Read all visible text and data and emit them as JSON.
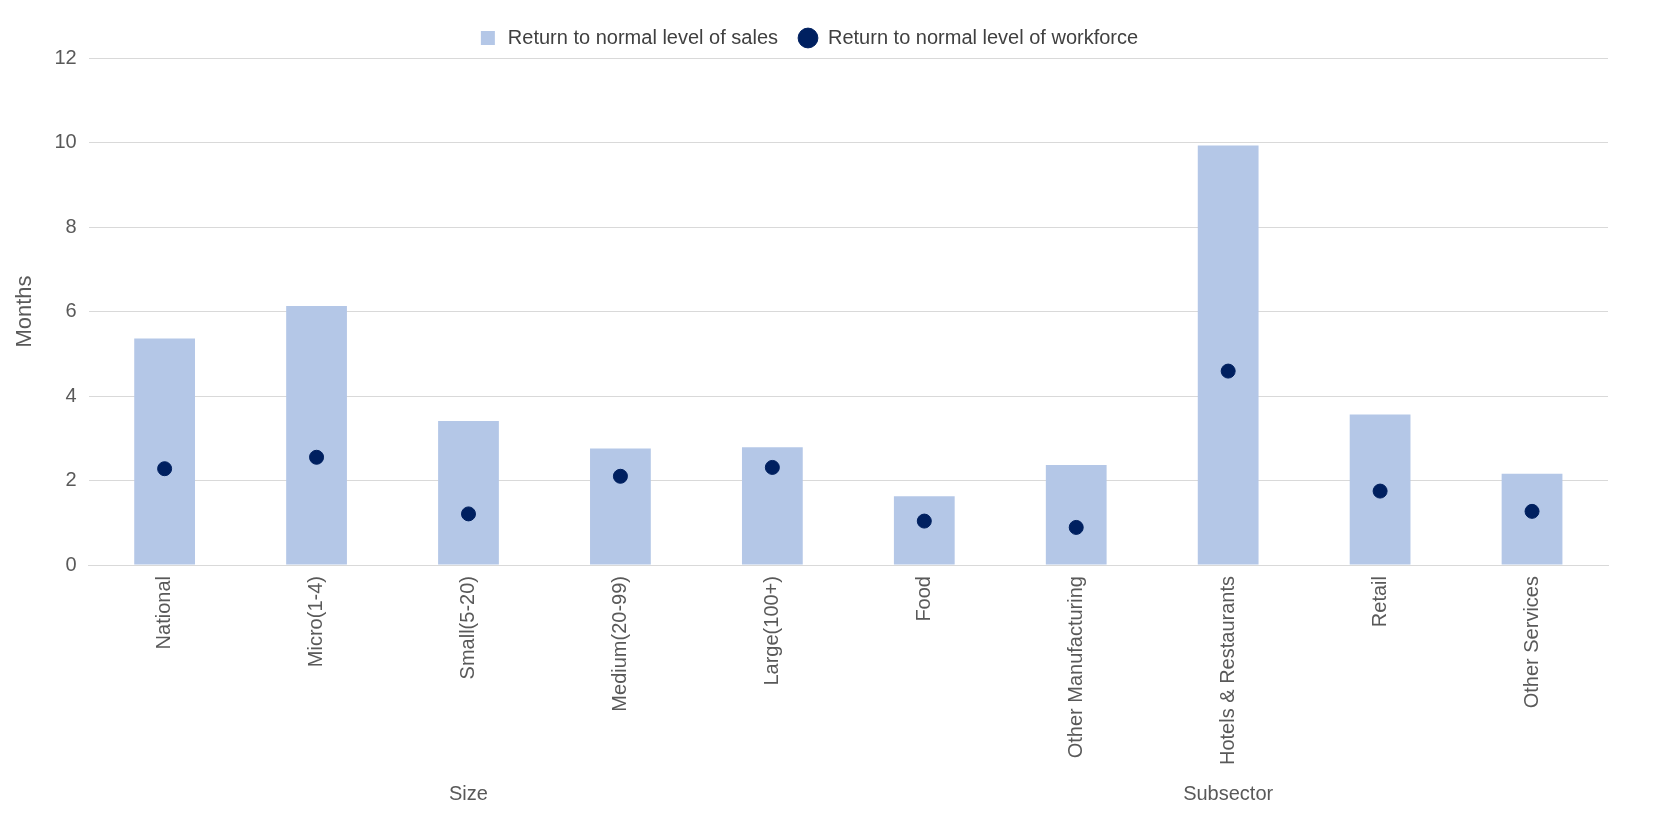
{
  "chart_data": {
    "type": "bar",
    "ylabel": "Months",
    "categories": [
      "National",
      "Micro(1-4)",
      "Small(5-20)",
      "Medium(20-99)",
      "Large(100+)",
      "Food",
      "Other Manufacturing",
      "Hotels & Restaurants",
      "Retail",
      "Other Services"
    ],
    "series": [
      {
        "name": "Return to normal level of sales",
        "color": "#b4c7e7",
        "values": [
          5.36,
          6.13,
          3.41,
          2.76,
          2.79,
          1.63,
          2.37,
          9.93,
          3.56,
          2.16
        ]
      },
      {
        "name": "Return to normal level of workforce",
        "type": "scatter",
        "color": "#002060",
        "values": [
          2.28,
          2.55,
          1.21,
          2.1,
          2.31,
          1.04,
          0.89,
          4.59,
          1.75,
          1.27
        ]
      }
    ],
    "annotations": [
      "Size",
      "Subsector"
    ],
    "ylim": [
      0,
      12
    ],
    "yticks": [
      0,
      2,
      4,
      6,
      8,
      10,
      12
    ],
    "grid": "y",
    "legend": "top",
    "marker": "circle"
  }
}
